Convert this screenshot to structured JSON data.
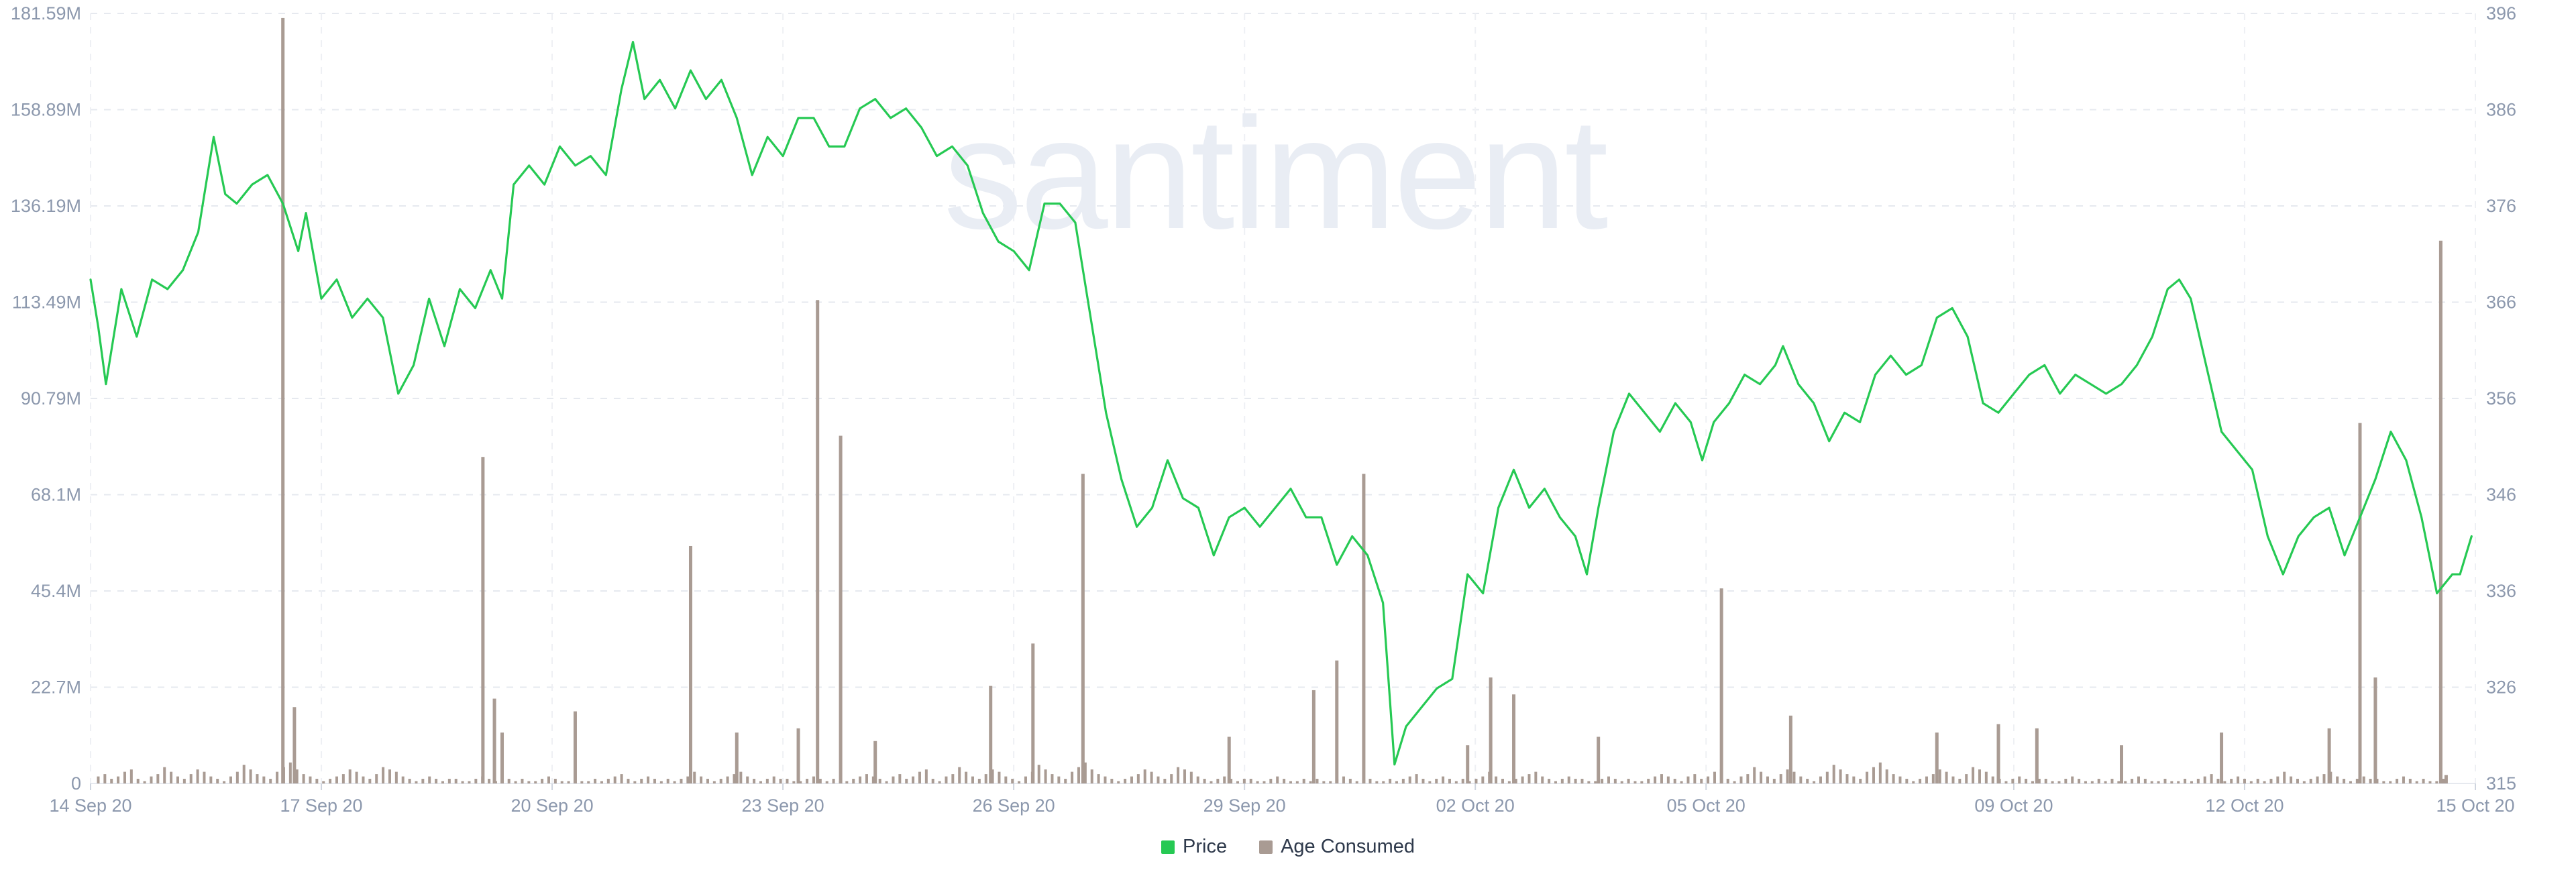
{
  "watermark": "santiment",
  "legend": [
    {
      "label": "Price",
      "color": "#26c953"
    },
    {
      "label": "Age Consumed",
      "color": "#a99b93"
    }
  ],
  "chart_data": {
    "type": "line+bar",
    "title": "",
    "grid": true,
    "legend_position": "bottom-center",
    "x_ticks": [
      "14 Sep 20",
      "17 Sep 20",
      "20 Sep 20",
      "23 Sep 20",
      "26 Sep 20",
      "29 Sep 20",
      "02 Oct 20",
      "05 Oct 20",
      "09 Oct 20",
      "12 Oct 20",
      "15 Oct 20"
    ],
    "left_axis": {
      "series": "Age Consumed",
      "ticks": [
        "0",
        "22.7M",
        "45.4M",
        "68.1M",
        "90.79M",
        "113.49M",
        "136.19M",
        "158.89M",
        "181.59M"
      ],
      "range": [
        0,
        181.59
      ]
    },
    "right_axis": {
      "series": "Price",
      "ticks": [
        "315",
        "326",
        "336",
        "346",
        "356",
        "366",
        "376",
        "386",
        "396"
      ],
      "range": [
        315,
        396
      ]
    },
    "x_range_days": [
      0,
      31
    ],
    "series": [
      {
        "name": "Price",
        "type": "line",
        "axis": "right",
        "color": "#26c953",
        "points": [
          [
            0,
            368
          ],
          [
            0.1,
            363
          ],
          [
            0.2,
            357
          ],
          [
            0.4,
            367
          ],
          [
            0.6,
            362
          ],
          [
            0.8,
            368
          ],
          [
            1.0,
            367
          ],
          [
            1.2,
            369
          ],
          [
            1.4,
            373
          ],
          [
            1.6,
            383
          ],
          [
            1.75,
            377
          ],
          [
            1.9,
            376
          ],
          [
            2.1,
            378
          ],
          [
            2.3,
            379
          ],
          [
            2.5,
            376
          ],
          [
            2.7,
            371
          ],
          [
            2.8,
            375
          ],
          [
            3.0,
            366
          ],
          [
            3.2,
            368
          ],
          [
            3.4,
            364
          ],
          [
            3.6,
            366
          ],
          [
            3.8,
            364
          ],
          [
            4.0,
            356
          ],
          [
            4.2,
            359
          ],
          [
            4.4,
            366
          ],
          [
            4.6,
            361
          ],
          [
            4.8,
            367
          ],
          [
            5.0,
            365
          ],
          [
            5.2,
            369
          ],
          [
            5.35,
            366
          ],
          [
            5.5,
            378
          ],
          [
            5.7,
            380
          ],
          [
            5.9,
            378
          ],
          [
            6.1,
            382
          ],
          [
            6.3,
            380
          ],
          [
            6.5,
            381
          ],
          [
            6.7,
            379
          ],
          [
            6.9,
            388
          ],
          [
            7.05,
            393
          ],
          [
            7.2,
            387
          ],
          [
            7.4,
            389
          ],
          [
            7.6,
            386
          ],
          [
            7.8,
            390
          ],
          [
            8.0,
            387
          ],
          [
            8.2,
            389
          ],
          [
            8.4,
            385
          ],
          [
            8.6,
            379
          ],
          [
            8.8,
            383
          ],
          [
            9.0,
            381
          ],
          [
            9.2,
            385
          ],
          [
            9.4,
            385
          ],
          [
            9.6,
            382
          ],
          [
            9.8,
            382
          ],
          [
            10.0,
            386
          ],
          [
            10.2,
            387
          ],
          [
            10.4,
            385
          ],
          [
            10.6,
            386
          ],
          [
            10.8,
            384
          ],
          [
            11.0,
            381
          ],
          [
            11.2,
            382
          ],
          [
            11.4,
            380
          ],
          [
            11.6,
            375
          ],
          [
            11.8,
            372
          ],
          [
            12.0,
            371
          ],
          [
            12.2,
            369
          ],
          [
            12.4,
            376
          ],
          [
            12.6,
            376
          ],
          [
            12.8,
            374
          ],
          [
            13.0,
            364
          ],
          [
            13.2,
            354
          ],
          [
            13.4,
            347
          ],
          [
            13.6,
            342
          ],
          [
            13.8,
            344
          ],
          [
            14.0,
            349
          ],
          [
            14.2,
            345
          ],
          [
            14.4,
            344
          ],
          [
            14.6,
            339
          ],
          [
            14.8,
            343
          ],
          [
            15.0,
            344
          ],
          [
            15.2,
            342
          ],
          [
            15.4,
            344
          ],
          [
            15.6,
            346
          ],
          [
            15.8,
            343
          ],
          [
            16.0,
            343
          ],
          [
            16.2,
            338
          ],
          [
            16.4,
            341
          ],
          [
            16.6,
            339
          ],
          [
            16.8,
            334
          ],
          [
            16.95,
            317
          ],
          [
            17.1,
            321
          ],
          [
            17.3,
            323
          ],
          [
            17.5,
            325
          ],
          [
            17.7,
            326
          ],
          [
            17.9,
            337
          ],
          [
            18.1,
            335
          ],
          [
            18.3,
            344
          ],
          [
            18.5,
            348
          ],
          [
            18.7,
            344
          ],
          [
            18.9,
            346
          ],
          [
            19.1,
            343
          ],
          [
            19.3,
            341
          ],
          [
            19.45,
            337
          ],
          [
            19.6,
            344
          ],
          [
            19.8,
            352
          ],
          [
            20.0,
            356
          ],
          [
            20.2,
            354
          ],
          [
            20.4,
            352
          ],
          [
            20.6,
            355
          ],
          [
            20.8,
            353
          ],
          [
            20.95,
            349
          ],
          [
            21.1,
            353
          ],
          [
            21.3,
            355
          ],
          [
            21.5,
            358
          ],
          [
            21.7,
            357
          ],
          [
            21.9,
            359
          ],
          [
            22.0,
            361
          ],
          [
            22.2,
            357
          ],
          [
            22.4,
            355
          ],
          [
            22.6,
            351
          ],
          [
            22.8,
            354
          ],
          [
            23.0,
            353
          ],
          [
            23.2,
            358
          ],
          [
            23.4,
            360
          ],
          [
            23.6,
            358
          ],
          [
            23.8,
            359
          ],
          [
            24.0,
            364
          ],
          [
            24.2,
            365
          ],
          [
            24.4,
            362
          ],
          [
            24.6,
            355
          ],
          [
            24.8,
            354
          ],
          [
            25.0,
            356
          ],
          [
            25.2,
            358
          ],
          [
            25.4,
            359
          ],
          [
            25.6,
            356
          ],
          [
            25.8,
            358
          ],
          [
            26.0,
            357
          ],
          [
            26.2,
            356
          ],
          [
            26.4,
            357
          ],
          [
            26.6,
            359
          ],
          [
            26.8,
            362
          ],
          [
            27.0,
            367
          ],
          [
            27.15,
            368
          ],
          [
            27.3,
            366
          ],
          [
            27.5,
            359
          ],
          [
            27.7,
            352
          ],
          [
            27.9,
            350
          ],
          [
            28.1,
            348
          ],
          [
            28.3,
            341
          ],
          [
            28.5,
            337
          ],
          [
            28.7,
            341
          ],
          [
            28.9,
            343
          ],
          [
            29.1,
            344
          ],
          [
            29.3,
            339
          ],
          [
            29.5,
            343
          ],
          [
            29.7,
            347
          ],
          [
            29.9,
            352
          ],
          [
            30.1,
            349
          ],
          [
            30.3,
            343
          ],
          [
            30.5,
            335
          ],
          [
            30.7,
            337
          ],
          [
            30.8,
            337
          ],
          [
            30.95,
            341
          ]
        ]
      },
      {
        "name": "Age Consumed",
        "type": "bar",
        "axis": "left",
        "color": "#a99b93",
        "spikes": [
          [
            2.5,
            180.5
          ],
          [
            2.65,
            18
          ],
          [
            5.1,
            77
          ],
          [
            5.25,
            20
          ],
          [
            5.35,
            12
          ],
          [
            6.3,
            17
          ],
          [
            7.8,
            56
          ],
          [
            8.4,
            12
          ],
          [
            9.2,
            13
          ],
          [
            9.45,
            114
          ],
          [
            9.75,
            82
          ],
          [
            10.2,
            10
          ],
          [
            11.7,
            23
          ],
          [
            12.25,
            33
          ],
          [
            12.9,
            73
          ],
          [
            14.8,
            11
          ],
          [
            15.9,
            22
          ],
          [
            16.2,
            29
          ],
          [
            16.55,
            73
          ],
          [
            17.9,
            9
          ],
          [
            18.2,
            25
          ],
          [
            18.5,
            21
          ],
          [
            19.6,
            11
          ],
          [
            21.2,
            46
          ],
          [
            22.1,
            16
          ],
          [
            24.0,
            12
          ],
          [
            24.8,
            14
          ],
          [
            25.3,
            13
          ],
          [
            26.4,
            9
          ],
          [
            27.7,
            12
          ],
          [
            29.1,
            13
          ],
          [
            29.5,
            85
          ],
          [
            29.7,
            25
          ],
          [
            30.55,
            128
          ],
          [
            30.62,
            2
          ]
        ],
        "baseline_samples": [
          3,
          4,
          2,
          3,
          5,
          6,
          2,
          1,
          3,
          4,
          7,
          5,
          3,
          2,
          4,
          6,
          5,
          3,
          2,
          1,
          3,
          5,
          8,
          6,
          4,
          3,
          2,
          5,
          7,
          9,
          6,
          4,
          3,
          2,
          1,
          2,
          3,
          4,
          6,
          5,
          3,
          2,
          4,
          7,
          6,
          5,
          3,
          2,
          1,
          2,
          3,
          2,
          1,
          2,
          2,
          1,
          1,
          2,
          3,
          2,
          1,
          1,
          2,
          1,
          2,
          1,
          1,
          2,
          3,
          2,
          1,
          1,
          2,
          1,
          1,
          2,
          1,
          2,
          3,
          4,
          2,
          1,
          2,
          3,
          2,
          1,
          2,
          1,
          2,
          3,
          5,
          3,
          2,
          1,
          2,
          3,
          4,
          5,
          3,
          2,
          1,
          2,
          3,
          2,
          2,
          1,
          1,
          2,
          3,
          2,
          1,
          2,
          1,
          1,
          2,
          3,
          4,
          3,
          2,
          1
        ]
      }
    ]
  }
}
